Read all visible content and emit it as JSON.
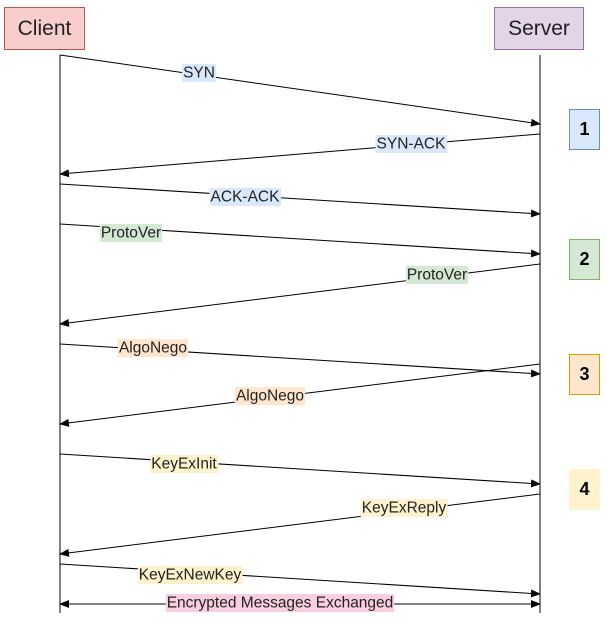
{
  "actors": {
    "client": "Client",
    "server": "Server"
  },
  "steps": [
    "1",
    "2",
    "3",
    "4"
  ],
  "messages": [
    {
      "label": "SYN",
      "from": "client",
      "to": "server",
      "color": "#dae8fc"
    },
    {
      "label": "SYN-ACK",
      "from": "server",
      "to": "client",
      "color": "#dae8fc"
    },
    {
      "label": "ACK-ACK",
      "from": "client",
      "to": "server",
      "color": "#dae8fc"
    },
    {
      "label": "ProtoVer",
      "from": "client",
      "to": "server",
      "color": "#d5e8d4"
    },
    {
      "label": "ProtoVer",
      "from": "server",
      "to": "client",
      "color": "#d5e8d4"
    },
    {
      "label": "AlgoNego",
      "from": "client",
      "to": "server",
      "color": "#ffe6cc"
    },
    {
      "label": "AlgoNego",
      "from": "server",
      "to": "client",
      "color": "#ffe6cc"
    },
    {
      "label": "KeyExInit",
      "from": "client",
      "to": "server",
      "color": "#fff2cc"
    },
    {
      "label": "KeyExReply",
      "from": "server",
      "to": "client",
      "color": "#fff2cc"
    },
    {
      "label": "KeyExNewKey",
      "from": "client",
      "to": "server",
      "color": "#fff2cc"
    },
    {
      "label": "Encrypted Messages Exchanged",
      "from": "client",
      "to": "both",
      "color": "#f8cee0"
    }
  ]
}
